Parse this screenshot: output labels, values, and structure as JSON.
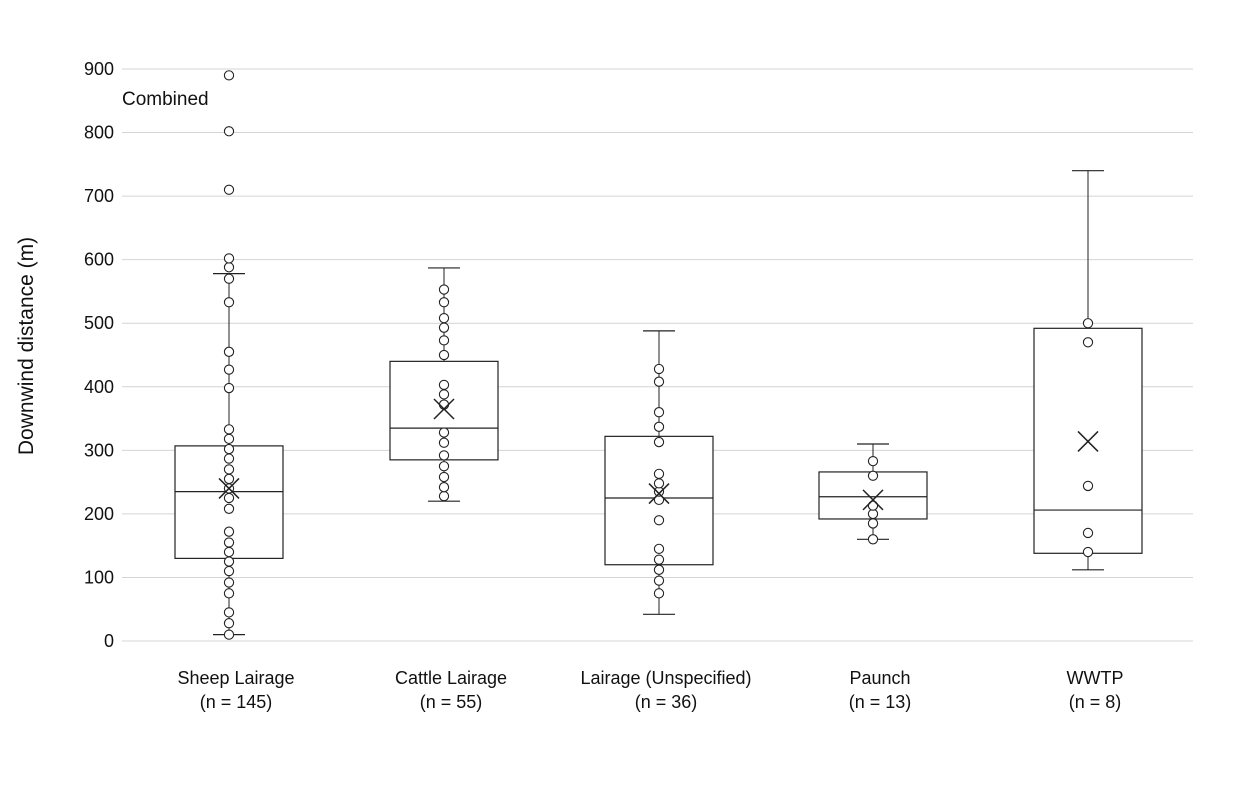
{
  "chart_data": {
    "type": "box",
    "title": "",
    "annotation": "Combined",
    "xlabel": "",
    "ylabel": "Downwind distance (m)",
    "ylim": [
      0,
      900
    ],
    "yticks": [
      0,
      100,
      200,
      300,
      400,
      500,
      600,
      700,
      800,
      900
    ],
    "grid": true,
    "categories": [
      {
        "label": "Sheep Lairage",
        "n_label": "(n = 145)",
        "whisker_low": 10,
        "q1": 130,
        "median": 235,
        "q3": 307,
        "whisker_high": 578,
        "mean": 240,
        "points": [
          10,
          28,
          45,
          75,
          92,
          110,
          125,
          140,
          155,
          172,
          208,
          225,
          240,
          255,
          270,
          287,
          302,
          318,
          333,
          398,
          427,
          455,
          533,
          570,
          588,
          602,
          710,
          802,
          890
        ]
      },
      {
        "label": "Cattle Lairage",
        "n_label": "(n = 55)",
        "whisker_low": 220,
        "q1": 285,
        "median": 335,
        "q3": 440,
        "whisker_high": 587,
        "mean": 365,
        "points": [
          228,
          242,
          258,
          275,
          292,
          312,
          328,
          372,
          388,
          403,
          450,
          473,
          493,
          508,
          533,
          553
        ]
      },
      {
        "label": "Lairage (Unspecified)",
        "n_label": "(n = 36)",
        "whisker_low": 42,
        "q1": 120,
        "median": 225,
        "q3": 322,
        "whisker_high": 488,
        "mean": 232,
        "points": [
          75,
          95,
          112,
          128,
          145,
          190,
          222,
          235,
          248,
          263,
          313,
          337,
          360,
          408,
          428
        ]
      },
      {
        "label": "Paunch",
        "n_label": "(n = 13)",
        "whisker_low": 160,
        "q1": 192,
        "median": 227,
        "q3": 266,
        "whisker_high": 310,
        "mean": 222,
        "points": [
          160,
          185,
          200,
          213,
          260,
          283
        ]
      },
      {
        "label": "WWTP",
        "n_label": "(n = 8)",
        "whisker_low": 112,
        "q1": 138,
        "median": 206,
        "q3": 492,
        "whisker_high": 740,
        "mean": 314,
        "points": [
          140,
          170,
          244,
          470,
          500
        ]
      }
    ]
  }
}
